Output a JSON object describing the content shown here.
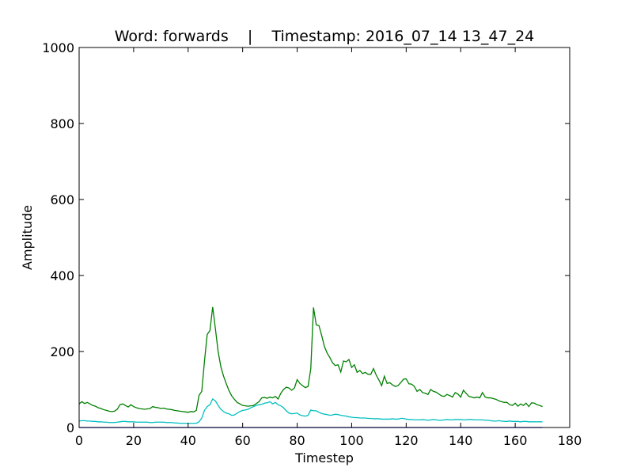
{
  "chart_data": {
    "type": "line",
    "title": "Word: forwards    |    Timestamp: 2016_07_14 13_47_24",
    "xlabel": "Timestep",
    "ylabel": "Amplitude",
    "xlim": [
      0,
      180
    ],
    "ylim": [
      0,
      1000
    ],
    "xticks": [
      0,
      20,
      40,
      60,
      80,
      100,
      120,
      140,
      160,
      180
    ],
    "yticks": [
      0,
      200,
      400,
      600,
      800,
      1000
    ],
    "grid": false,
    "series": [
      {
        "color": "#008000",
        "x": [
          0,
          1,
          2,
          3,
          4,
          5,
          6,
          7,
          8,
          9,
          10,
          11,
          12,
          13,
          14,
          15,
          16,
          17,
          18,
          19,
          20,
          21,
          22,
          23,
          24,
          25,
          26,
          27,
          28,
          29,
          30,
          31,
          32,
          33,
          34,
          35,
          36,
          37,
          38,
          39,
          40,
          41,
          42,
          43,
          44,
          45,
          46,
          47,
          48,
          49,
          50,
          51,
          52,
          53,
          54,
          55,
          56,
          57,
          58,
          59,
          60,
          61,
          62,
          63,
          64,
          65,
          66,
          67,
          68,
          69,
          70,
          71,
          72,
          73,
          74,
          75,
          76,
          77,
          78,
          79,
          80,
          81,
          82,
          83,
          84,
          85,
          86,
          87,
          88,
          89,
          90,
          91,
          92,
          93,
          94,
          95,
          96,
          97,
          98,
          99,
          100,
          101,
          102,
          103,
          104,
          105,
          106,
          107,
          108,
          109,
          110,
          111,
          112,
          113,
          114,
          115,
          116,
          117,
          118,
          119,
          120,
          121,
          122,
          123,
          124,
          125,
          126,
          127,
          128,
          129,
          130,
          131,
          132,
          133,
          134,
          135,
          136,
          137,
          138,
          139,
          140,
          141,
          142,
          143,
          144,
          145,
          146,
          147,
          148,
          149,
          150,
          151,
          152,
          153,
          154,
          155,
          156,
          157,
          158,
          159,
          160,
          161,
          162,
          163,
          164,
          165,
          166,
          167,
          168,
          169,
          170
        ],
        "y": [
          62,
          68,
          63,
          66,
          62,
          58,
          56,
          52,
          50,
          47,
          45,
          43,
          42,
          43,
          48,
          60,
          62,
          58,
          54,
          60,
          55,
          52,
          50,
          49,
          48,
          49,
          50,
          55,
          53,
          52,
          50,
          51,
          49,
          48,
          47,
          45,
          44,
          43,
          42,
          41,
          40,
          42,
          41,
          45,
          85,
          95,
          175,
          245,
          255,
          317,
          260,
          200,
          160,
          135,
          115,
          97,
          83,
          74,
          66,
          62,
          58,
          57,
          56,
          57,
          58,
          63,
          68,
          78,
          79,
          77,
          80,
          78,
          82,
          75,
          90,
          100,
          106,
          104,
          98,
          104,
          126,
          116,
          110,
          105,
          108,
          155,
          316,
          270,
          268,
          242,
          213,
          196,
          184,
          170,
          163,
          165,
          146,
          175,
          173,
          179,
          158,
          165,
          145,
          150,
          142,
          145,
          140,
          140,
          155,
          138,
          125,
          110,
          135,
          116,
          118,
          112,
          108,
          110,
          118,
          127,
          128,
          115,
          114,
          108,
          95,
          100,
          92,
          90,
          87,
          100,
          95,
          93,
          88,
          83,
          82,
          87,
          84,
          80,
          92,
          88,
          80,
          98,
          90,
          82,
          80,
          78,
          80,
          78,
          92,
          80,
          78,
          78,
          76,
          74,
          70,
          68,
          66,
          66,
          60,
          58,
          64,
          56,
          62,
          58,
          64,
          55,
          65,
          64,
          60,
          58,
          55
        ]
      },
      {
        "color": "#00bfbf",
        "x": [
          0,
          1,
          2,
          3,
          4,
          5,
          6,
          7,
          8,
          9,
          10,
          11,
          12,
          13,
          14,
          15,
          16,
          17,
          18,
          19,
          20,
          21,
          22,
          23,
          24,
          25,
          26,
          27,
          28,
          29,
          30,
          31,
          32,
          33,
          34,
          35,
          36,
          37,
          38,
          39,
          40,
          41,
          42,
          43,
          44,
          45,
          46,
          47,
          48,
          49,
          50,
          51,
          52,
          53,
          54,
          55,
          56,
          57,
          58,
          59,
          60,
          61,
          62,
          63,
          64,
          65,
          66,
          67,
          68,
          69,
          70,
          71,
          72,
          73,
          74,
          75,
          76,
          77,
          78,
          79,
          80,
          81,
          82,
          83,
          84,
          85,
          86,
          87,
          88,
          89,
          90,
          91,
          92,
          93,
          94,
          95,
          96,
          97,
          98,
          99,
          100,
          101,
          102,
          103,
          104,
          105,
          106,
          107,
          108,
          109,
          110,
          111,
          112,
          113,
          114,
          115,
          116,
          117,
          118,
          119,
          120,
          121,
          122,
          123,
          124,
          125,
          126,
          127,
          128,
          129,
          130,
          131,
          132,
          133,
          134,
          135,
          136,
          137,
          138,
          139,
          140,
          141,
          142,
          143,
          144,
          145,
          146,
          147,
          148,
          149,
          150,
          151,
          152,
          153,
          154,
          155,
          156,
          157,
          158,
          159,
          160,
          161,
          162,
          163,
          164,
          165,
          166,
          167,
          168,
          169,
          170
        ],
        "y": [
          17,
          18,
          18,
          17,
          17,
          16,
          16,
          15,
          15,
          14,
          14,
          13,
          13,
          13,
          14,
          15,
          16,
          16,
          15,
          15,
          15,
          14,
          14,
          14,
          14,
          14,
          13,
          13,
          14,
          14,
          14,
          14,
          13,
          13,
          13,
          12,
          12,
          11,
          11,
          11,
          11,
          11,
          11,
          11,
          15,
          25,
          45,
          55,
          60,
          75,
          70,
          58,
          48,
          42,
          38,
          36,
          32,
          33,
          38,
          42,
          45,
          46,
          48,
          52,
          55,
          58,
          60,
          61,
          64,
          65,
          68,
          62,
          66,
          60,
          57,
          52,
          44,
          38,
          36,
          37,
          38,
          33,
          31,
          30,
          32,
          46,
          44,
          44,
          40,
          37,
          35,
          34,
          32,
          33,
          35,
          34,
          32,
          31,
          30,
          28,
          27,
          26,
          26,
          25,
          25,
          25,
          24,
          24,
          23,
          23,
          23,
          22,
          22,
          22,
          22,
          23,
          22,
          22,
          24,
          24,
          22,
          21,
          21,
          20,
          20,
          20,
          21,
          20,
          19,
          20,
          21,
          20,
          19,
          19,
          20,
          21,
          20,
          20,
          21,
          21,
          21,
          20,
          20,
          21,
          21,
          20,
          20,
          20,
          20,
          19,
          19,
          18,
          17,
          17,
          18,
          17,
          16,
          16,
          17,
          16,
          16,
          16,
          15,
          16,
          16,
          15,
          15,
          15,
          15,
          15,
          15
        ]
      },
      {
        "color": "#0000ff",
        "x": [
          0,
          170
        ],
        "y": [
          0,
          0
        ]
      }
    ]
  }
}
